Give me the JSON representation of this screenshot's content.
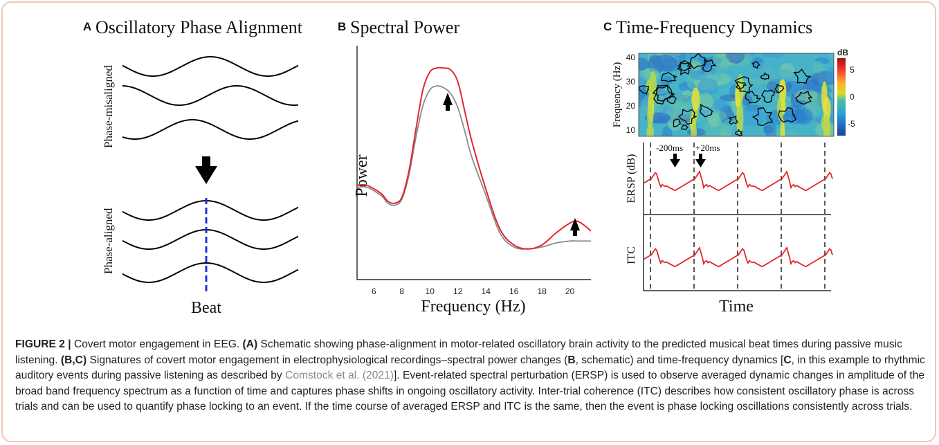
{
  "panelA": {
    "letter": "A",
    "title": "Oscillatory Phase Alignment",
    "label_top": "Phase-misaligned",
    "label_bottom": "Phase-aligned",
    "xlabel": "Beat"
  },
  "panelB": {
    "letter": "B",
    "title": "Spectral Power",
    "ylabel": "Power",
    "xlabel": "Frequency (Hz)",
    "chart_data": {
      "type": "line",
      "title": "Spectral Power",
      "xlabel": "Frequency (Hz)",
      "ylabel": "Power",
      "xlim": [
        4.8,
        21.5
      ],
      "xticks": [
        "6",
        "8",
        "10",
        "12",
        "14",
        "16",
        "18",
        "20"
      ],
      "series": [
        {
          "color": "#e3262b",
          "x": [
            4.8,
            5.5,
            6.5,
            7.0,
            7.5,
            8.0,
            8.5,
            9.0,
            9.5,
            10.0,
            10.5,
            11.0,
            11.5,
            12.0,
            12.5,
            13.0,
            14.0,
            15.0,
            16.0,
            17.0,
            18.0,
            19.0,
            20.0,
            20.5,
            21.0,
            21.5
          ],
          "y": [
            0.38,
            0.38,
            0.34,
            0.3,
            0.29,
            0.32,
            0.45,
            0.66,
            0.86,
            0.95,
            0.97,
            0.97,
            0.96,
            0.9,
            0.75,
            0.6,
            0.36,
            0.16,
            0.08,
            0.06,
            0.08,
            0.14,
            0.19,
            0.2,
            0.18,
            0.15
          ]
        },
        {
          "color": "#8a8a8a",
          "x": [
            4.8,
            5.5,
            6.5,
            7.0,
            7.5,
            8.0,
            8.5,
            9.0,
            9.5,
            10.0,
            10.5,
            11.0,
            11.5,
            12.0,
            12.5,
            13.0,
            14.0,
            15.0,
            16.0,
            17.0,
            18.0,
            19.0,
            20.0,
            20.5,
            21.0,
            21.5
          ],
          "y": [
            0.37,
            0.37,
            0.33,
            0.29,
            0.28,
            0.31,
            0.43,
            0.62,
            0.78,
            0.86,
            0.88,
            0.87,
            0.84,
            0.77,
            0.65,
            0.52,
            0.33,
            0.14,
            0.07,
            0.06,
            0.07,
            0.09,
            0.1,
            0.1,
            0.1,
            0.1
          ]
        }
      ]
    }
  },
  "panelC": {
    "letter": "C",
    "title": "Time-Frequency Dynamics",
    "heatmap": {
      "ylabel": "Frequency (Hz)",
      "yticks": [
        "40",
        "30",
        "20",
        "10"
      ],
      "colorbar_unit": "dB",
      "colorbar_ticks": [
        "5",
        "0",
        "-5"
      ]
    },
    "ersp": {
      "ylabel": "ERSP (dB)",
      "annotation_1": "-200ms",
      "annotation_2": "+20ms"
    },
    "itc": {
      "ylabel": "ITC"
    },
    "xlabel": "Time"
  },
  "caption": {
    "fig_label": "FIGURE 2 |",
    "s1": " Covert motor engagement in EEG. ",
    "a_label": "(A)",
    "s2": " Schematic showing phase-alignment in motor-related oscillatory brain activity to the predicted musical beat times during passive music listening. ",
    "bc_label": "(B,C)",
    "s3": " Signatures of covert motor engagement in electrophysiological recordings–spectral power changes (",
    "b_inline": "B",
    "s4": ", schematic) and time-frequency dynamics [",
    "c_inline": "C",
    "s5": ", in this example to rhythmic auditory events during passive listening as described by ",
    "citation": "Comstock et al. (2021)",
    "s6": "]. Event-related spectral perturbation (ERSP) is used to observe averaged dynamic changes in amplitude of the broad band frequency spectrum as a function of time and captures phase shifts in ongoing oscillatory activity. Inter-trial coherence (ITC) describes how consistent oscillatory phase is across trials and can be used to quantify phase locking to an event. If the time course of averaged ERSP and ITC is the same, then the event is phase locking oscillations consistently across trials."
  }
}
